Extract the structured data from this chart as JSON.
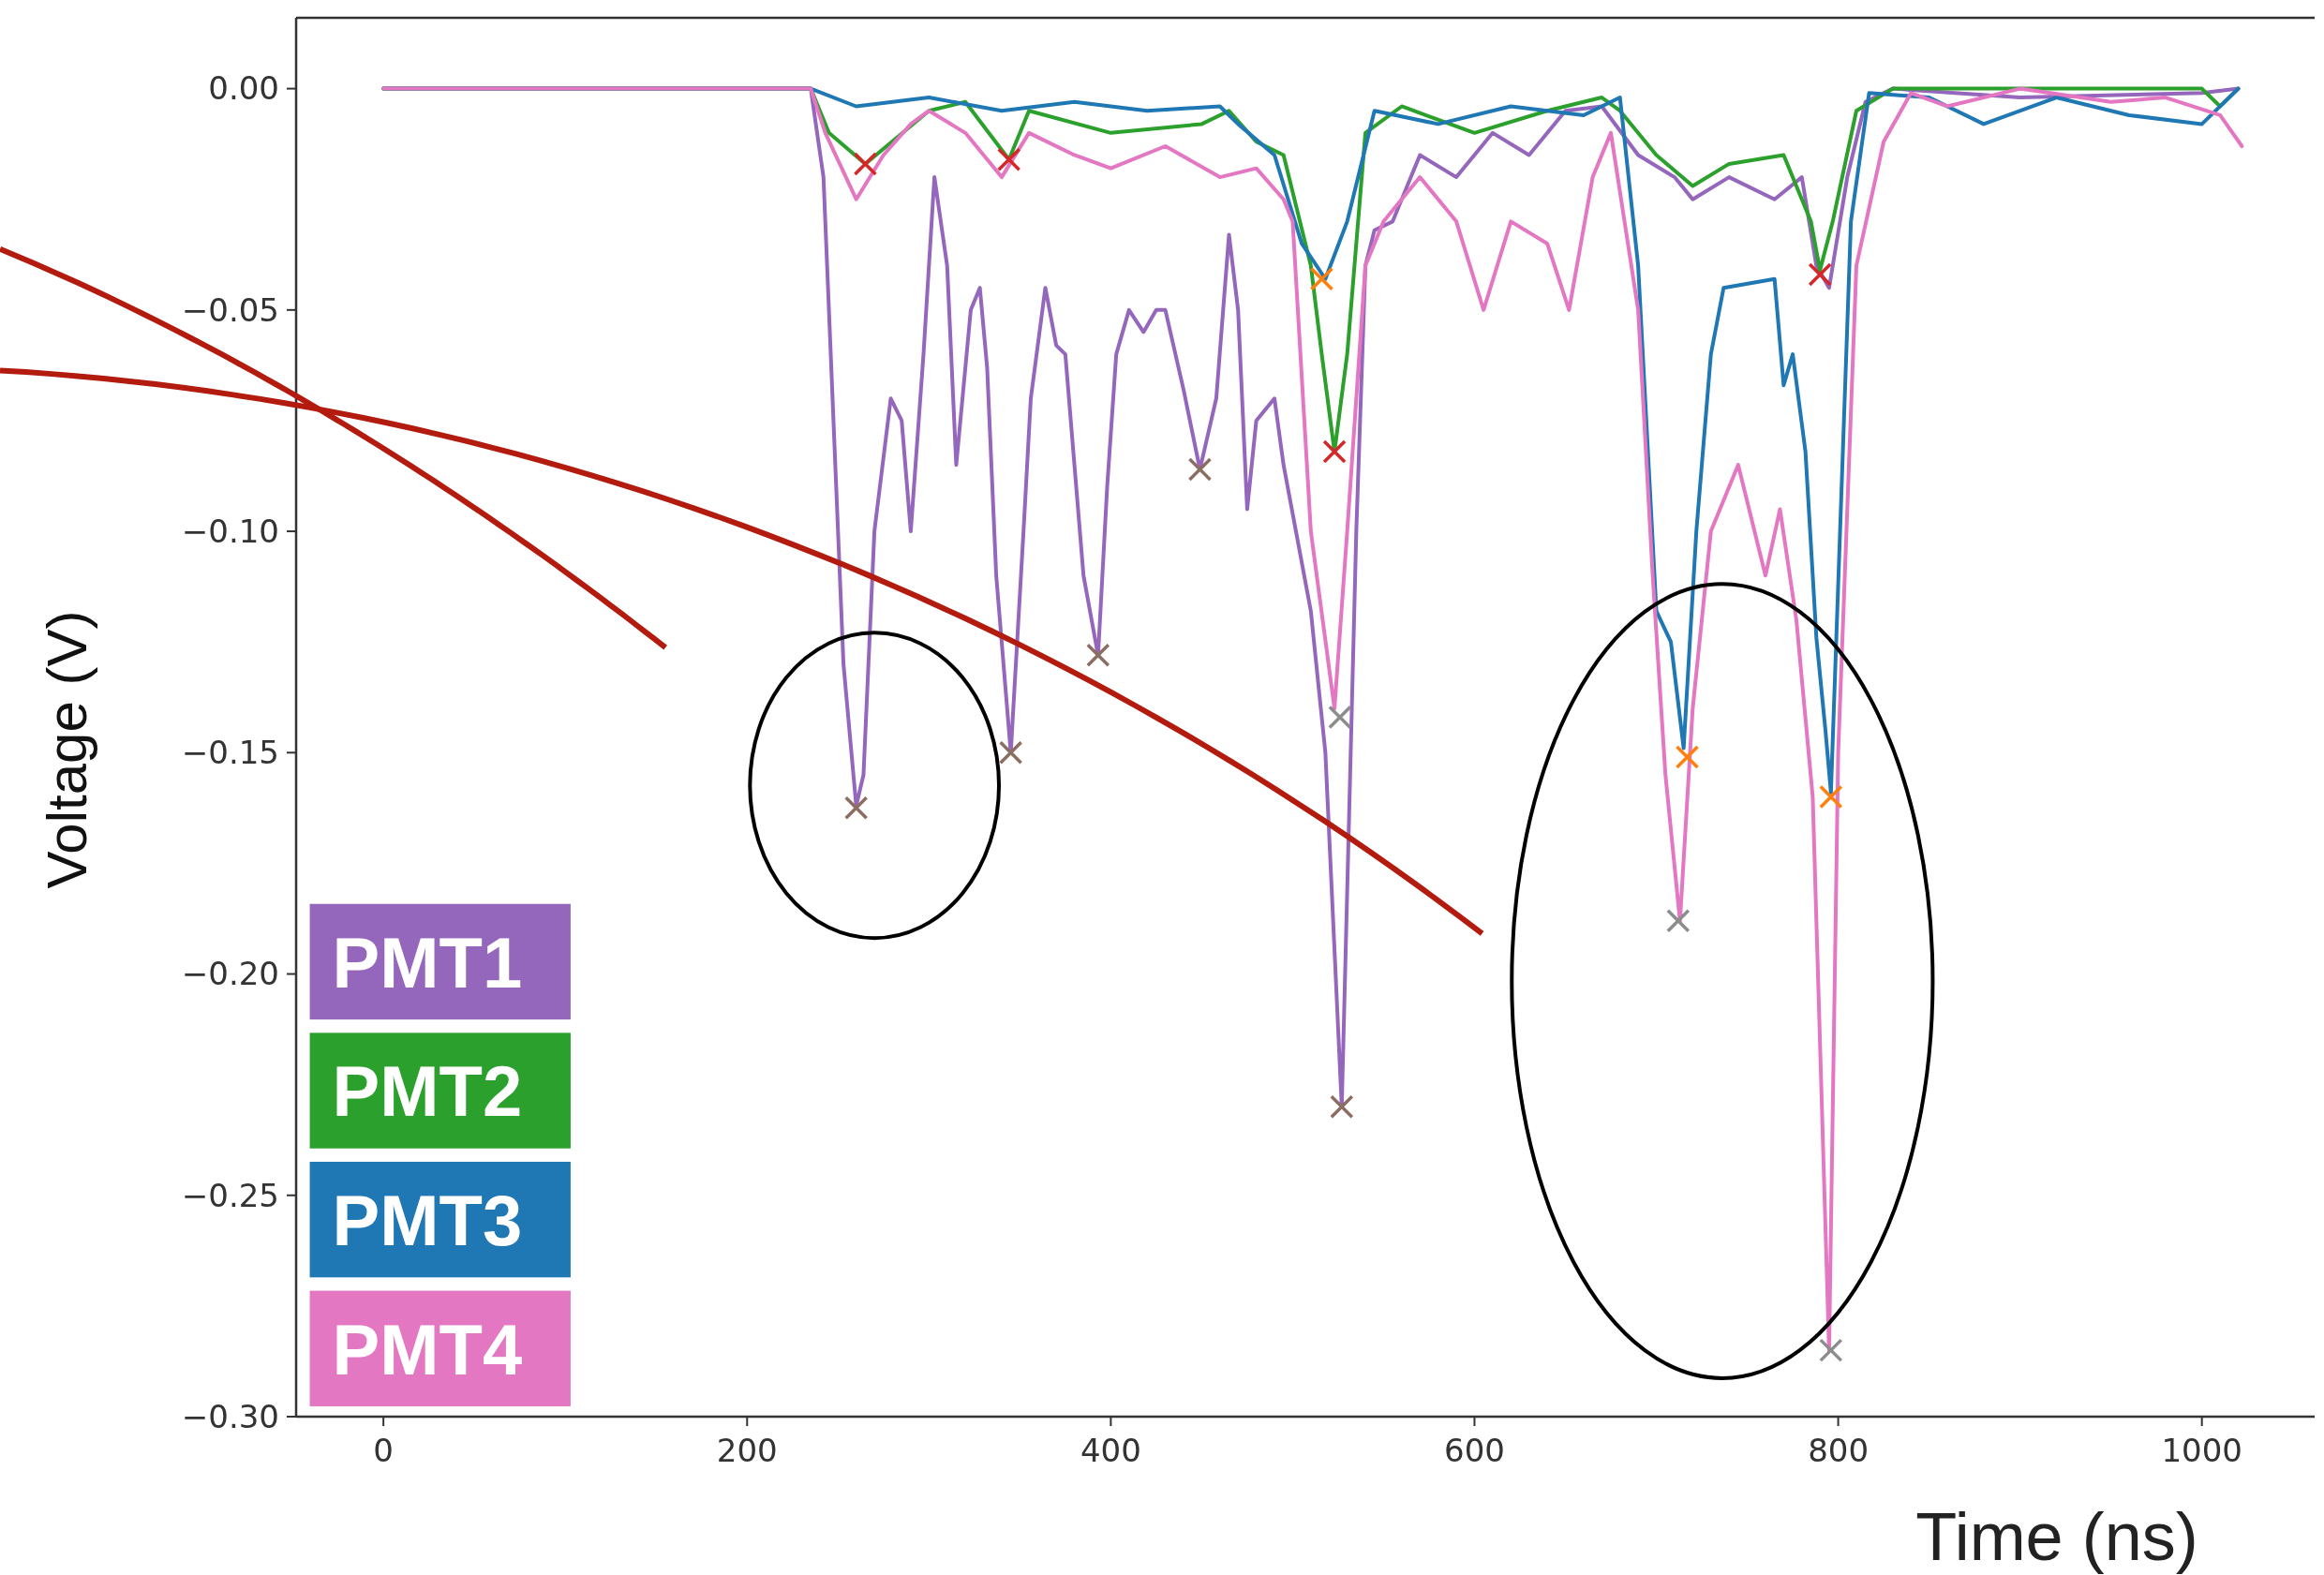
{
  "chart_data": {
    "type": "line",
    "xlabel": "Time (ns)",
    "ylabel": "Voltage (V)",
    "xlim": [
      -48,
      1062
    ],
    "ylim": [
      -0.3,
      0.016
    ],
    "xticks": [
      0,
      200,
      400,
      600,
      800,
      1000
    ],
    "yticks": [
      {
        "value": 0,
        "label": "0.00"
      },
      {
        "value": -0.05,
        "label": "−0.05"
      },
      {
        "value": -0.1,
        "label": "−0.10"
      },
      {
        "value": -0.15,
        "label": "−0.15"
      },
      {
        "value": -0.2,
        "label": "−0.20"
      },
      {
        "value": -0.25,
        "label": "−0.25"
      },
      {
        "value": -0.3,
        "label": "−0.30"
      }
    ],
    "grid": false,
    "legend": "bottom left",
    "line_style": "solid",
    "series": [
      {
        "name": "PMT1",
        "color": "#9467bd",
        "x": [
          0,
          235,
          242,
          248,
          253,
          260,
          264,
          270,
          279,
          285,
          290,
          297,
          303,
          310,
          315,
          323,
          328,
          332,
          337,
          345,
          352,
          356,
          364,
          370,
          375,
          385,
          393,
          398,
          403,
          410,
          418,
          425,
          430,
          440,
          449,
          458,
          465,
          470,
          475,
          480,
          490,
          495,
          510,
          518,
          527,
          535,
          540,
          545,
          555,
          570,
          590,
          610,
          630,
          650,
          670,
          690,
          710,
          720,
          740,
          765,
          780,
          788,
          795,
          805,
          815,
          830,
          900,
          1000,
          1020
        ],
        "values": [
          0,
          0,
          -0.02,
          -0.08,
          -0.13,
          -0.162,
          -0.155,
          -0.1,
          -0.07,
          -0.075,
          -0.1,
          -0.06,
          -0.02,
          -0.04,
          -0.085,
          -0.05,
          -0.045,
          -0.063,
          -0.11,
          -0.15,
          -0.1,
          -0.07,
          -0.045,
          -0.058,
          -0.06,
          -0.11,
          -0.128,
          -0.09,
          -0.06,
          -0.05,
          -0.055,
          -0.05,
          -0.05,
          -0.068,
          -0.086,
          -0.07,
          -0.033,
          -0.05,
          -0.095,
          -0.075,
          -0.07,
          -0.085,
          -0.118,
          -0.15,
          -0.23,
          -0.1,
          -0.04,
          -0.032,
          -0.03,
          -0.015,
          -0.02,
          -0.01,
          -0.015,
          -0.005,
          -0.004,
          -0.015,
          -0.02,
          -0.025,
          -0.02,
          -0.025,
          -0.02,
          -0.04,
          -0.045,
          -0.02,
          -0.003,
          0,
          -0.002,
          -0.001,
          0
        ]
      },
      {
        "name": "PMT2",
        "color": "#2ca02c",
        "x": [
          0,
          235,
          245,
          265,
          300,
          320,
          344,
          355,
          400,
          450,
          465,
          480,
          495,
          510,
          516,
          523,
          530,
          540,
          560,
          600,
          640,
          670,
          680,
          700,
          720,
          740,
          770,
          785,
          790,
          797,
          810,
          830,
          1000,
          1010,
          1020
        ],
        "values": [
          0,
          0,
          -0.01,
          -0.017,
          -0.005,
          -0.003,
          -0.016,
          -0.005,
          -0.01,
          -0.008,
          -0.005,
          -0.012,
          -0.015,
          -0.04,
          -0.06,
          -0.082,
          -0.06,
          -0.01,
          -0.004,
          -0.01,
          -0.005,
          -0.002,
          -0.005,
          -0.015,
          -0.022,
          -0.017,
          -0.015,
          -0.03,
          -0.041,
          -0.03,
          -0.005,
          0,
          0,
          -0.004,
          0
        ]
      },
      {
        "name": "PMT3",
        "color": "#1f77b4",
        "x": [
          0,
          235,
          260,
          300,
          340,
          380,
          420,
          460,
          470,
          490,
          505,
          518,
          530,
          545,
          580,
          620,
          660,
          680,
          690,
          700,
          708,
          715,
          722,
          730,
          737,
          765,
          770,
          775,
          782,
          788,
          793,
          796,
          807,
          817,
          850,
          880,
          920,
          960,
          1000,
          1020
        ],
        "values": [
          0,
          0,
          -0.004,
          -0.002,
          -0.005,
          -0.003,
          -0.005,
          -0.004,
          -0.008,
          -0.015,
          -0.035,
          -0.043,
          -0.03,
          -0.005,
          -0.008,
          -0.004,
          -0.006,
          -0.002,
          -0.04,
          -0.118,
          -0.125,
          -0.149,
          -0.1,
          -0.06,
          -0.045,
          -0.043,
          -0.067,
          -0.06,
          -0.082,
          -0.124,
          -0.145,
          -0.159,
          -0.03,
          -0.001,
          -0.002,
          -0.008,
          -0.002,
          -0.006,
          -0.008,
          0
        ]
      },
      {
        "name": "PMT4",
        "color": "#e377c2",
        "x": [
          0,
          235,
          243,
          260,
          275,
          290,
          300,
          320,
          340,
          355,
          380,
          400,
          430,
          460,
          480,
          495,
          500,
          510,
          523,
          530,
          540,
          550,
          570,
          590,
          605,
          620,
          640,
          652,
          665,
          675,
          690,
          698,
          705,
          713,
          720,
          730,
          745,
          760,
          768,
          777,
          786,
          795,
          800,
          810,
          825,
          840,
          860,
          900,
          950,
          980,
          1010,
          1022
        ],
        "values": [
          0,
          0,
          -0.01,
          -0.025,
          -0.015,
          -0.008,
          -0.005,
          -0.01,
          -0.02,
          -0.01,
          -0.015,
          -0.018,
          -0.013,
          -0.02,
          -0.018,
          -0.025,
          -0.03,
          -0.1,
          -0.14,
          -0.1,
          -0.04,
          -0.03,
          -0.02,
          -0.03,
          -0.05,
          -0.03,
          -0.035,
          -0.05,
          -0.02,
          -0.01,
          -0.05,
          -0.11,
          -0.155,
          -0.188,
          -0.14,
          -0.1,
          -0.085,
          -0.11,
          -0.095,
          -0.12,
          -0.16,
          -0.285,
          -0.15,
          -0.04,
          -0.012,
          -0.001,
          -0.004,
          0,
          -0.003,
          -0.002,
          -0.006,
          -0.013
        ]
      },
      {
        "type": "scatter",
        "marker": "cross",
        "x": [
          260,
          265,
          345,
          344,
          393,
          449,
          516,
          523,
          527,
          526,
          717,
          712,
          790,
          796,
          796
        ],
        "values": [
          -0.1625,
          -0.017,
          -0.15,
          -0.016,
          -0.128,
          -0.086,
          -0.043,
          -0.082,
          -0.23,
          -0.142,
          -0.151,
          -0.188,
          -0.042,
          -0.16,
          -0.285
        ],
        "colors": [
          "#8c6d62",
          "#d62728",
          "#8c6d62",
          "#d62728",
          "#8c6d62",
          "#8c6d62",
          "#ff7f0e",
          "#d62728",
          "#8c6d62",
          "#8c8c8c",
          "#ff7f0e",
          "#8c8c8c",
          "#d62728",
          "#ff7f0e",
          "#8c8c8c"
        ]
      }
    ]
  }
}
